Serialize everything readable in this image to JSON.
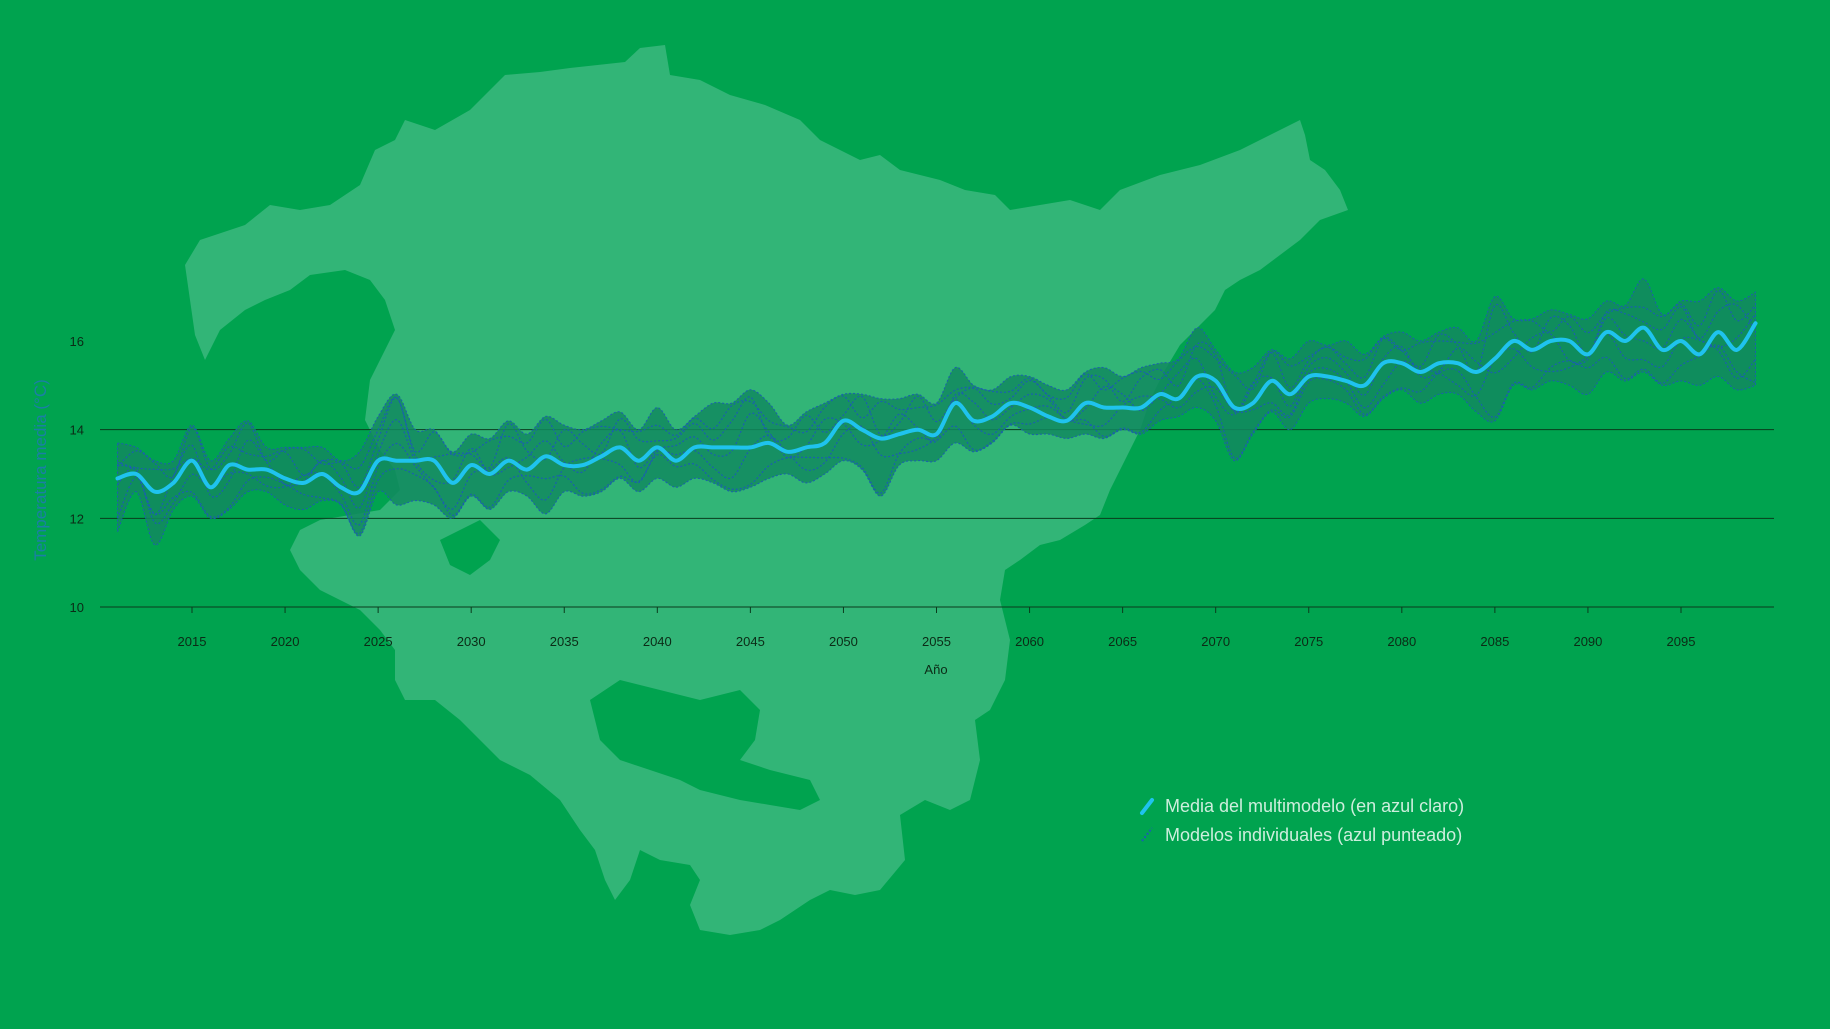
{
  "chart_data": {
    "type": "line",
    "title": "",
    "xlabel": "Año",
    "ylabel": "Temperatura media (°C)",
    "xlim": [
      2010,
      2100
    ],
    "ylim": [
      10,
      16.5
    ],
    "x_ticks": [
      2015,
      2020,
      2025,
      2030,
      2035,
      2040,
      2045,
      2050,
      2055,
      2060,
      2065,
      2070,
      2075,
      2080,
      2085,
      2090,
      2095
    ],
    "y_ticks": [
      10,
      12,
      14,
      16
    ],
    "gridlines_y": [
      10,
      12,
      14
    ],
    "colors": {
      "background": "#00a34f",
      "region_fill": "#32b577",
      "band_fill": "#128a5f",
      "mean_line": "#1fc3ee",
      "model_lines": "#1a5fb0",
      "grid": "#0a3b1c"
    },
    "series": [
      {
        "name": "Media del multimodelo (en azul claro)",
        "x": [
          2011,
          2012,
          2013,
          2014,
          2015,
          2016,
          2017,
          2018,
          2019,
          2020,
          2021,
          2022,
          2023,
          2024,
          2025,
          2026,
          2027,
          2028,
          2029,
          2030,
          2031,
          2032,
          2033,
          2034,
          2035,
          2036,
          2037,
          2038,
          2039,
          2040,
          2041,
          2042,
          2043,
          2044,
          2045,
          2046,
          2047,
          2048,
          2049,
          2050,
          2051,
          2052,
          2053,
          2054,
          2055,
          2056,
          2057,
          2058,
          2059,
          2060,
          2061,
          2062,
          2063,
          2064,
          2065,
          2066,
          2067,
          2068,
          2069,
          2070,
          2071,
          2072,
          2073,
          2074,
          2075,
          2076,
          2077,
          2078,
          2079,
          2080,
          2081,
          2082,
          2083,
          2084,
          2085,
          2086,
          2087,
          2088,
          2089,
          2090,
          2091,
          2092,
          2093,
          2094,
          2095,
          2096,
          2097,
          2098,
          2099
        ],
        "values": [
          12.9,
          13.0,
          12.6,
          12.8,
          13.3,
          12.7,
          13.2,
          13.1,
          13.1,
          12.9,
          12.8,
          13.0,
          12.7,
          12.6,
          13.3,
          13.3,
          13.3,
          13.3,
          12.8,
          13.2,
          13.0,
          13.3,
          13.1,
          13.4,
          13.2,
          13.2,
          13.4,
          13.6,
          13.3,
          13.6,
          13.3,
          13.6,
          13.6,
          13.6,
          13.6,
          13.7,
          13.5,
          13.6,
          13.7,
          14.2,
          14.0,
          13.8,
          13.9,
          14.0,
          13.9,
          14.6,
          14.2,
          14.3,
          14.6,
          14.5,
          14.3,
          14.2,
          14.6,
          14.5,
          14.5,
          14.5,
          14.8,
          14.7,
          15.2,
          15.1,
          14.5,
          14.6,
          15.1,
          14.8,
          15.2,
          15.2,
          15.1,
          15.0,
          15.5,
          15.5,
          15.3,
          15.5,
          15.5,
          15.3,
          15.6,
          16.0,
          15.8,
          16.0,
          16.0,
          15.7,
          16.2,
          16.0,
          16.3,
          15.8,
          16.0,
          15.7,
          16.2,
          15.8,
          16.4
        ]
      },
      {
        "name": "Modelos individuales (azul punteado)",
        "style": "dotted",
        "x_range": [
          2011,
          2099
        ],
        "band_lower": [
          11.7,
          12.6,
          11.4,
          12.2,
          12.5,
          12.0,
          12.2,
          12.6,
          12.6,
          12.3,
          12.2,
          12.4,
          12.3,
          11.6,
          12.6,
          12.3,
          12.4,
          12.3,
          12.0,
          12.5,
          12.2,
          12.6,
          12.5,
          12.1,
          12.6,
          12.5,
          12.6,
          12.9,
          12.6,
          12.9,
          12.7,
          12.9,
          12.8,
          12.6,
          12.7,
          12.9,
          13.0,
          12.8,
          13.0,
          13.3,
          13.1,
          12.5,
          13.2,
          13.3,
          13.3,
          13.7,
          13.5,
          13.7,
          14.1,
          13.9,
          13.9,
          13.8,
          13.9,
          13.8,
          14.0,
          13.9,
          14.2,
          14.3,
          14.5,
          14.2,
          13.3,
          13.9,
          14.4,
          14.0,
          14.6,
          14.7,
          14.6,
          14.3,
          14.7,
          14.9,
          14.6,
          14.8,
          14.8,
          14.4,
          14.2,
          15.0,
          14.9,
          15.1,
          15.0,
          14.8,
          15.3,
          15.1,
          15.3,
          15.0,
          15.1,
          15.0,
          15.2,
          14.9,
          15.0
        ],
        "band_upper": [
          13.7,
          13.6,
          13.3,
          13.3,
          14.1,
          13.3,
          13.8,
          14.2,
          13.6,
          13.6,
          13.6,
          13.6,
          13.3,
          13.5,
          14.3,
          14.8,
          14.0,
          14.0,
          13.5,
          13.9,
          13.8,
          14.2,
          13.9,
          14.3,
          14.1,
          14.0,
          14.2,
          14.4,
          14.0,
          14.5,
          14.0,
          14.3,
          14.6,
          14.6,
          14.9,
          14.6,
          14.1,
          14.4,
          14.6,
          14.8,
          14.8,
          14.7,
          14.7,
          14.8,
          14.6,
          15.4,
          15.0,
          14.9,
          15.2,
          15.2,
          15.0,
          14.9,
          15.3,
          15.4,
          15.2,
          15.4,
          15.5,
          15.6,
          16.3,
          15.8,
          15.3,
          15.4,
          15.8,
          15.6,
          16.0,
          15.9,
          16.0,
          15.7,
          16.1,
          16.2,
          16.0,
          16.2,
          16.3,
          16.0,
          17.0,
          16.5,
          16.5,
          16.7,
          16.6,
          16.5,
          16.9,
          16.8,
          17.4,
          16.6,
          16.9,
          16.9,
          17.2,
          16.9,
          17.1
        ]
      }
    ],
    "legend": {
      "position": "bottom-right",
      "entries": [
        {
          "label": "Media del multimodelo (en azul claro)",
          "style": "solid",
          "color": "#1fc3ee"
        },
        {
          "label": "Modelos individuales (azul punteado)",
          "style": "dotted",
          "color": "#1a5fb0"
        }
      ]
    }
  }
}
